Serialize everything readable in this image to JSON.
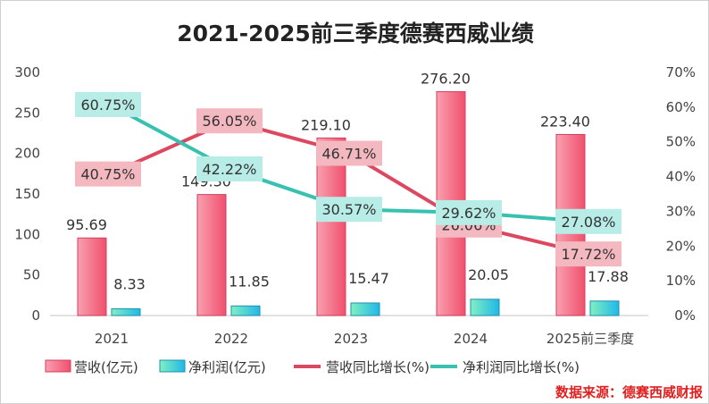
{
  "chart_data": {
    "type": "bar+line",
    "title": "2021-2025前三季度德赛西威业绩",
    "categories": [
      "2021",
      "2022",
      "2023",
      "2024",
      "2025前三季度"
    ],
    "bar_series": [
      {
        "name": "营收(亿元)",
        "values": [
          95.69,
          149.3,
          219.1,
          276.2,
          223.4
        ],
        "labels": [
          "95.69",
          "149.30",
          "219.10",
          "276.20",
          "223.40"
        ],
        "color": "#f0607a"
      },
      {
        "name": "净利润(亿元)",
        "values": [
          8.33,
          11.85,
          15.47,
          20.05,
          17.88
        ],
        "labels": [
          "8.33",
          "11.85",
          "15.47",
          "20.05",
          "17.88"
        ],
        "color": "#3cc8d8"
      }
    ],
    "line_series": [
      {
        "name": "营收同比增长(%)",
        "values": [
          40.75,
          56.05,
          46.71,
          26.06,
          17.72
        ],
        "labels": [
          "40.75%",
          "56.05%",
          "46.71%",
          "26.06%",
          "17.72%"
        ],
        "color": "#dc4860",
        "label_bg": "#f4b8c0"
      },
      {
        "name": "净利润同比增长(%)",
        "values": [
          60.75,
          42.22,
          30.57,
          29.62,
          27.08
        ],
        "labels": [
          "60.75%",
          "42.22%",
          "30.57%",
          "29.62%",
          "27.08%"
        ],
        "color": "#38c0b0",
        "label_bg": "#b8ece6"
      }
    ],
    "left_axis": {
      "range": [
        0,
        300
      ],
      "ticks": [
        "0",
        "50",
        "100",
        "150",
        "200",
        "250",
        "300"
      ]
    },
    "right_axis": {
      "range": [
        0,
        70
      ],
      "ticks": [
        "0%",
        "10%",
        "20%",
        "30%",
        "40%",
        "50%",
        "60%",
        "70%"
      ]
    },
    "grid": false,
    "legend_position": "bottom"
  },
  "source_note": "数据来源：德赛西威财报"
}
